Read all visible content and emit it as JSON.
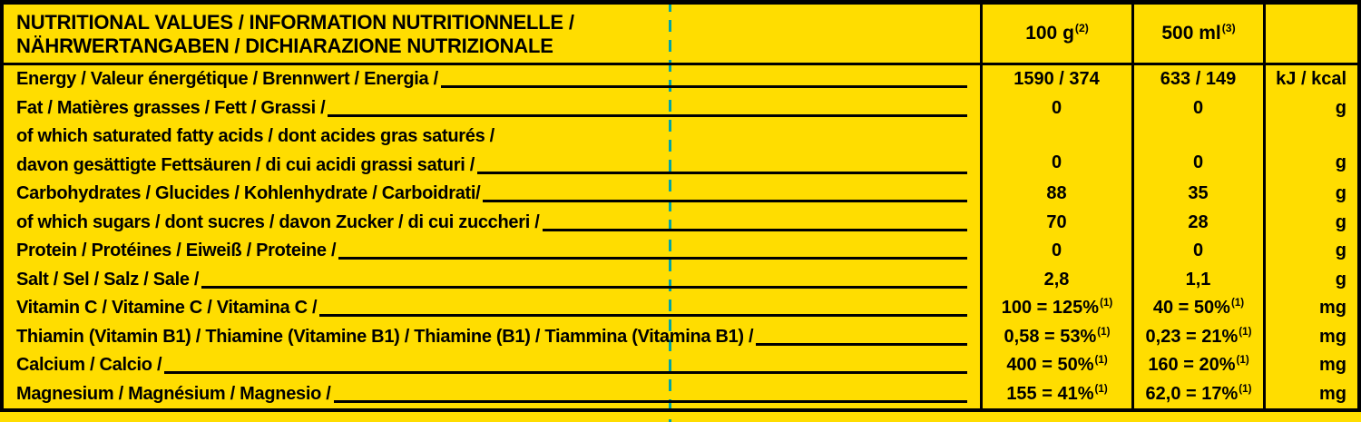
{
  "colors": {
    "background": "#FFDD00",
    "text": "#000000",
    "cutline": "#00A5A8"
  },
  "header": {
    "title_line1": "NUTRITIONAL VALUES / INFORMATION NUTRITIONNELLE /",
    "title_line2": "NÄHRWERTANGABEN / DICHIARAZIONE NUTRIZIONALE",
    "col_100g": "100 g",
    "col_100g_sup": "(2)",
    "col_500ml": "500 ml",
    "col_500ml_sup": "(3)"
  },
  "rows": [
    {
      "label": "Energy / Valeur énergétique / Brennwert / Energia /",
      "v100": "1590 / 374",
      "v500": "633 / 149",
      "unit": "kJ / kcal"
    },
    {
      "label": "Fat / Matières grasses / Fett / Grassi /",
      "v100": "0",
      "v500": "0",
      "unit": "g"
    },
    {
      "label": "of which saturated fatty acids / dont acides gras saturés /",
      "label2": "davon gesättigte Fettsäuren / di cui acidi grassi saturi /",
      "v100": "0",
      "v500": "0",
      "unit": "g"
    },
    {
      "label": "Carbohydrates / Glucides  / Kohlenhydrate / Carboidrati/",
      "v100": "88",
      "v500": "35",
      "unit": "g"
    },
    {
      "label": "of which sugars / dont sucres / davon Zucker / di cui zuccheri /",
      "v100": "70",
      "v500": "28",
      "unit": "g"
    },
    {
      "label": "Protein / Protéines  / Eiweiß / Proteine /",
      "v100": "0",
      "v500": "0",
      "unit": "g"
    },
    {
      "label": "Salt / Sel / Salz / Sale /",
      "v100": "2,8",
      "v500": "1,1",
      "unit": "g"
    },
    {
      "label": "Vitamin C / Vitamine C / Vitamina C /",
      "v100": "100 = 125%",
      "sup100": "(1)",
      "v500": "40 = 50%",
      "sup500": "(1)",
      "unit": "mg"
    },
    {
      "label": "Thiamin (Vitamin B1) / Thiamine (Vitamine B1) / Thiamine (B1) / Tiammina (Vitamina B1) /",
      "v100": "0,58 = 53%",
      "sup100": "(1)",
      "v500": "0,23 = 21%",
      "sup500": "(1)",
      "unit": "mg"
    },
    {
      "label": "Calcium / Calcio /",
      "v100": "400 = 50%",
      "sup100": "(1)",
      "v500": "160 = 20%",
      "sup500": "(1)",
      "unit": "mg"
    },
    {
      "label": "Magnesium / Magnésium / Magnesio /",
      "v100": "155 = 41%",
      "sup100": "(1)",
      "v500": "62,0 = 17%",
      "sup500": "(1)",
      "unit": "mg"
    }
  ]
}
